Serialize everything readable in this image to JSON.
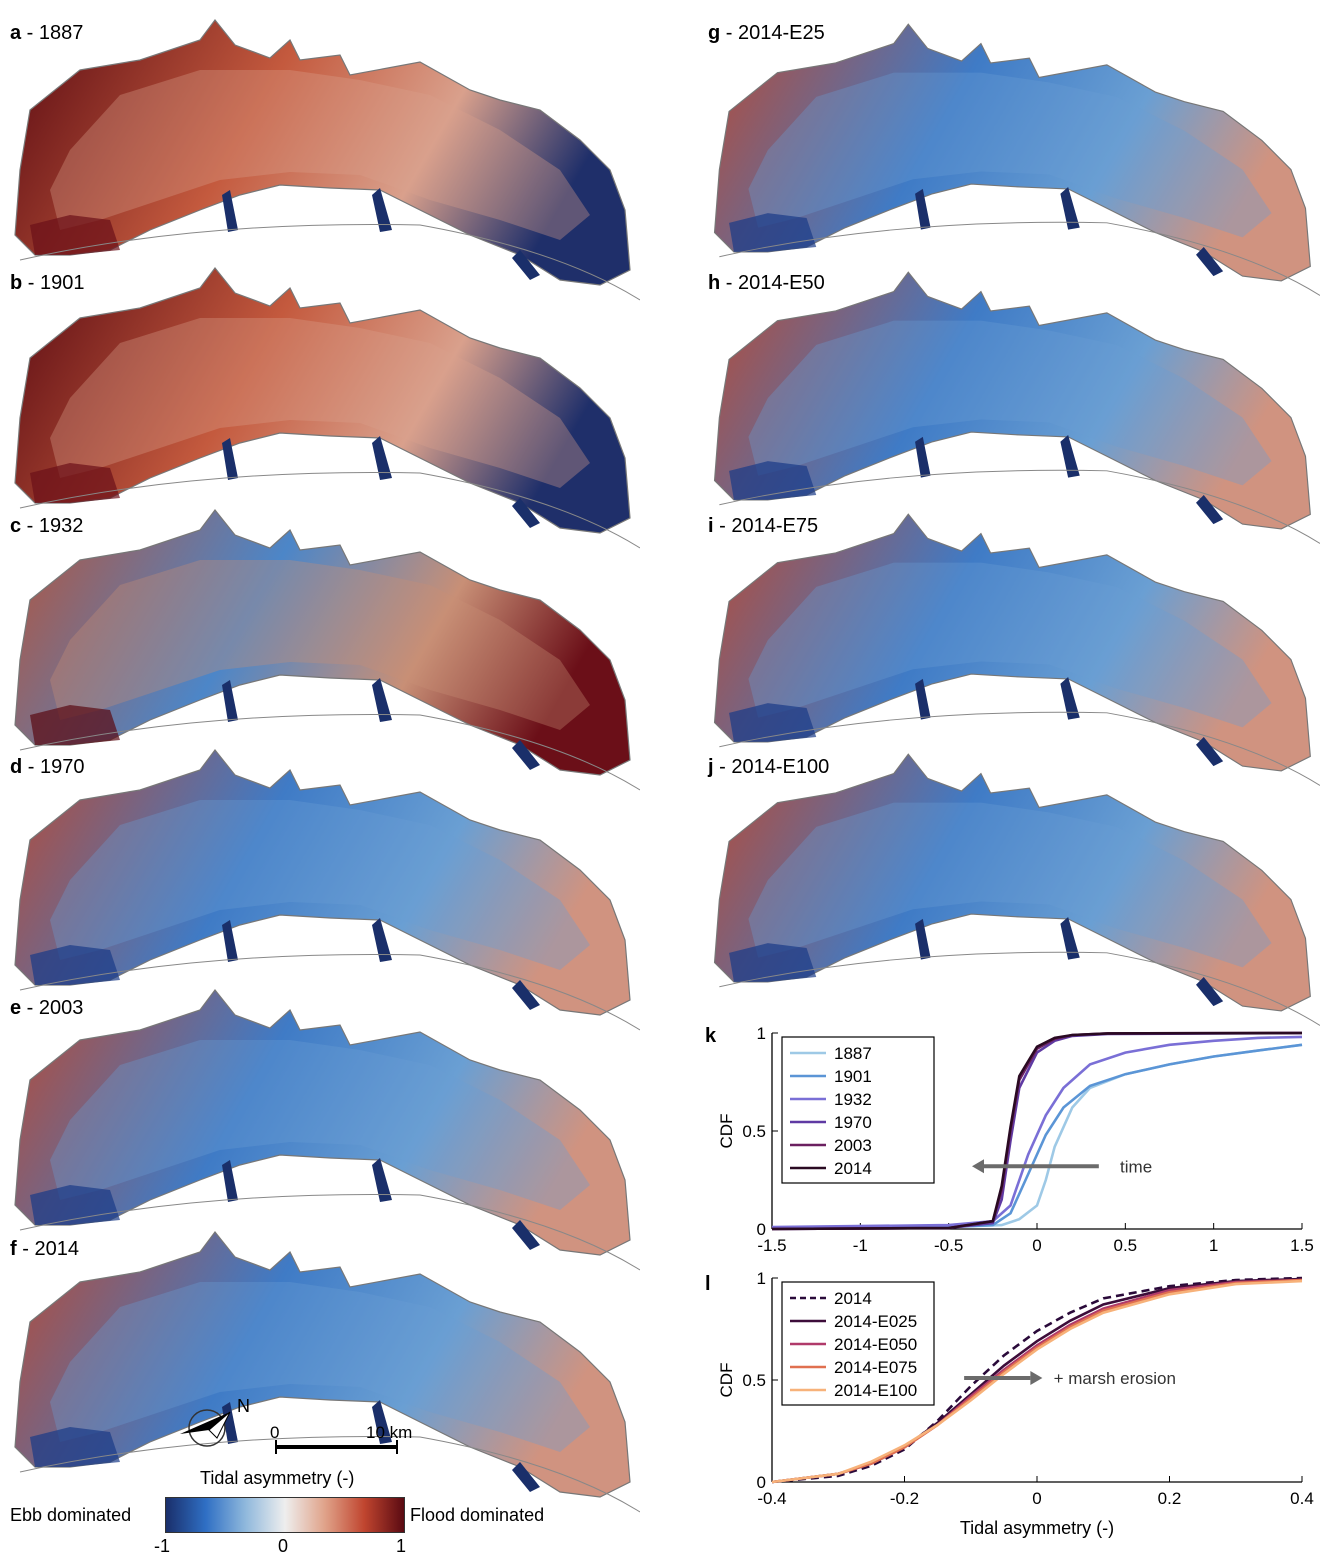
{
  "panels": [
    {
      "letter": "a",
      "label": "1887"
    },
    {
      "letter": "b",
      "label": "1901"
    },
    {
      "letter": "c",
      "label": "1932"
    },
    {
      "letter": "d",
      "label": "1970"
    },
    {
      "letter": "e",
      "label": "2003"
    },
    {
      "letter": "f",
      "label": "2014"
    },
    {
      "letter": "g",
      "label": "2014-E25"
    },
    {
      "letter": "h",
      "label": "2014-E50"
    },
    {
      "letter": "i",
      "label": "2014-E75"
    },
    {
      "letter": "j",
      "label": "2014-E100"
    }
  ],
  "separator": " - ",
  "map_style": {
    "a": "flood-heavy",
    "b": "flood-heavy",
    "c": "mixed",
    "d": "ebb",
    "e": "ebb",
    "f": "ebb",
    "g": "ebb",
    "h": "ebb",
    "i": "ebb",
    "j": "ebb"
  },
  "compass": {
    "north_label": "N",
    "icon": "north-arrow-icon"
  },
  "scalebar": {
    "start_label": "0",
    "end_label": "10 km"
  },
  "colorbar": {
    "title": "Tidal asymmetry (-)",
    "left_label": "Ebb dominated",
    "right_label": "Flood dominated",
    "ticks": [
      "-1",
      "0",
      "1"
    ],
    "colors": [
      "#1a2f6b",
      "#2f6fc4",
      "#8fb8dc",
      "#eeeeee",
      "#e0a38a",
      "#c0452f",
      "#5a0a12"
    ]
  },
  "chart_data": [
    {
      "panel": "k",
      "type": "line",
      "title": "",
      "xlabel": "",
      "ylabel": "CDF",
      "xlim": [
        -1.5,
        1.5
      ],
      "ylim": [
        0,
        1
      ],
      "xticks": [
        "-1.5",
        "-1",
        "-0.5",
        "0",
        "0.5",
        "1",
        "1.5"
      ],
      "yticks": [
        "0",
        "0.5",
        "1"
      ],
      "legend_position": "top-left",
      "annotation": {
        "text": "time",
        "arrow": "left"
      },
      "series": [
        {
          "name": "1887",
          "color": "#9ec9e6",
          "points": [
            [
              -1.5,
              0.005
            ],
            [
              -0.5,
              0.01
            ],
            [
              -0.2,
              0.02
            ],
            [
              -0.1,
              0.05
            ],
            [
              0,
              0.12
            ],
            [
              0.05,
              0.25
            ],
            [
              0.1,
              0.42
            ],
            [
              0.2,
              0.62
            ],
            [
              0.3,
              0.72
            ],
            [
              0.5,
              0.79
            ],
            [
              0.75,
              0.84
            ],
            [
              1,
              0.88
            ],
            [
              1.25,
              0.91
            ],
            [
              1.5,
              0.94
            ]
          ]
        },
        {
          "name": "1901",
          "color": "#5b95d6",
          "points": [
            [
              -1.5,
              0.005
            ],
            [
              -0.5,
              0.01
            ],
            [
              -0.25,
              0.02
            ],
            [
              -0.15,
              0.08
            ],
            [
              -0.05,
              0.28
            ],
            [
              0.05,
              0.48
            ],
            [
              0.15,
              0.62
            ],
            [
              0.3,
              0.73
            ],
            [
              0.5,
              0.79
            ],
            [
              0.75,
              0.84
            ],
            [
              1,
              0.88
            ],
            [
              1.25,
              0.91
            ],
            [
              1.5,
              0.94
            ]
          ]
        },
        {
          "name": "1932",
          "color": "#7a6fd6",
          "points": [
            [
              -1.5,
              0.01
            ],
            [
              -0.5,
              0.02
            ],
            [
              -0.25,
              0.04
            ],
            [
              -0.15,
              0.12
            ],
            [
              -0.05,
              0.38
            ],
            [
              0.05,
              0.58
            ],
            [
              0.15,
              0.72
            ],
            [
              0.3,
              0.84
            ],
            [
              0.5,
              0.9
            ],
            [
              0.75,
              0.94
            ],
            [
              1,
              0.96
            ],
            [
              1.25,
              0.975
            ],
            [
              1.5,
              0.98
            ]
          ]
        },
        {
          "name": "1970",
          "color": "#5f3aa3",
          "points": [
            [
              -1.5,
              0.0
            ],
            [
              -0.5,
              0.005
            ],
            [
              -0.25,
              0.03
            ],
            [
              -0.2,
              0.15
            ],
            [
              -0.15,
              0.45
            ],
            [
              -0.1,
              0.72
            ],
            [
              0,
              0.9
            ],
            [
              0.1,
              0.96
            ],
            [
              0.2,
              0.985
            ],
            [
              0.4,
              0.995
            ],
            [
              1.5,
              1.0
            ]
          ]
        },
        {
          "name": "2003",
          "color": "#6b2060",
          "points": [
            [
              -1.5,
              0.0
            ],
            [
              -0.5,
              0.005
            ],
            [
              -0.25,
              0.04
            ],
            [
              -0.2,
              0.2
            ],
            [
              -0.15,
              0.5
            ],
            [
              -0.1,
              0.76
            ],
            [
              0,
              0.92
            ],
            [
              0.1,
              0.97
            ],
            [
              0.2,
              0.99
            ],
            [
              0.4,
              0.998
            ],
            [
              1.5,
              1.0
            ]
          ]
        },
        {
          "name": "2014",
          "color": "#2a0a22",
          "points": [
            [
              -1.5,
              0.0
            ],
            [
              -0.5,
              0.005
            ],
            [
              -0.25,
              0.04
            ],
            [
              -0.2,
              0.22
            ],
            [
              -0.15,
              0.52
            ],
            [
              -0.1,
              0.78
            ],
            [
              0,
              0.93
            ],
            [
              0.1,
              0.975
            ],
            [
              0.2,
              0.99
            ],
            [
              0.4,
              0.998
            ],
            [
              1.5,
              1.0
            ]
          ]
        }
      ]
    },
    {
      "panel": "l",
      "type": "line",
      "title": "",
      "xlabel": "Tidal asymmetry (-)",
      "ylabel": "CDF",
      "xlim": [
        -0.4,
        0.4
      ],
      "ylim": [
        0,
        1
      ],
      "xticks": [
        "-0.4",
        "-0.2",
        "0",
        "0.2",
        "0.4"
      ],
      "yticks": [
        "0",
        "0.5",
        "1"
      ],
      "legend_position": "top-left",
      "annotation": {
        "text": "+ marsh erosion",
        "arrow": "right"
      },
      "series": [
        {
          "name": "2014",
          "color": "#2a0a3a",
          "dash": true,
          "points": [
            [
              -0.4,
              0.0
            ],
            [
              -0.3,
              0.03
            ],
            [
              -0.25,
              0.08
            ],
            [
              -0.2,
              0.16
            ],
            [
              -0.15,
              0.3
            ],
            [
              -0.1,
              0.47
            ],
            [
              -0.05,
              0.62
            ],
            [
              0,
              0.74
            ],
            [
              0.05,
              0.83
            ],
            [
              0.1,
              0.9
            ],
            [
              0.2,
              0.96
            ],
            [
              0.3,
              0.99
            ],
            [
              0.4,
              1.0
            ]
          ]
        },
        {
          "name": "2014-E025",
          "color": "#3d0d3a",
          "points": [
            [
              -0.4,
              0.0
            ],
            [
              -0.3,
              0.04
            ],
            [
              -0.25,
              0.09
            ],
            [
              -0.2,
              0.17
            ],
            [
              -0.15,
              0.29
            ],
            [
              -0.1,
              0.43
            ],
            [
              -0.05,
              0.57
            ],
            [
              0,
              0.69
            ],
            [
              0.05,
              0.79
            ],
            [
              0.1,
              0.87
            ],
            [
              0.2,
              0.95
            ],
            [
              0.3,
              0.985
            ],
            [
              0.4,
              0.995
            ]
          ]
        },
        {
          "name": "2014-E050",
          "color": "#b03a6a",
          "points": [
            [
              -0.4,
              0.0
            ],
            [
              -0.3,
              0.04
            ],
            [
              -0.25,
              0.09
            ],
            [
              -0.2,
              0.17
            ],
            [
              -0.15,
              0.28
            ],
            [
              -0.1,
              0.42
            ],
            [
              -0.05,
              0.55
            ],
            [
              0,
              0.67
            ],
            [
              0.05,
              0.77
            ],
            [
              0.1,
              0.85
            ],
            [
              0.2,
              0.94
            ],
            [
              0.3,
              0.98
            ],
            [
              0.4,
              0.99
            ]
          ]
        },
        {
          "name": "2014-E075",
          "color": "#e07050",
          "points": [
            [
              -0.4,
              0.0
            ],
            [
              -0.3,
              0.04
            ],
            [
              -0.25,
              0.09
            ],
            [
              -0.2,
              0.17
            ],
            [
              -0.15,
              0.28
            ],
            [
              -0.1,
              0.41
            ],
            [
              -0.05,
              0.54
            ],
            [
              0,
              0.66
            ],
            [
              0.05,
              0.76
            ],
            [
              0.1,
              0.84
            ],
            [
              0.2,
              0.93
            ],
            [
              0.3,
              0.975
            ],
            [
              0.4,
              0.99
            ]
          ]
        },
        {
          "name": "2014-E100",
          "color": "#f7b27a",
          "points": [
            [
              -0.4,
              0.0
            ],
            [
              -0.3,
              0.04
            ],
            [
              -0.25,
              0.1
            ],
            [
              -0.2,
              0.18
            ],
            [
              -0.15,
              0.28
            ],
            [
              -0.1,
              0.4
            ],
            [
              -0.05,
              0.53
            ],
            [
              0,
              0.65
            ],
            [
              0.05,
              0.75
            ],
            [
              0.1,
              0.83
            ],
            [
              0.2,
              0.92
            ],
            [
              0.3,
              0.97
            ],
            [
              0.4,
              0.985
            ]
          ]
        }
      ]
    }
  ]
}
